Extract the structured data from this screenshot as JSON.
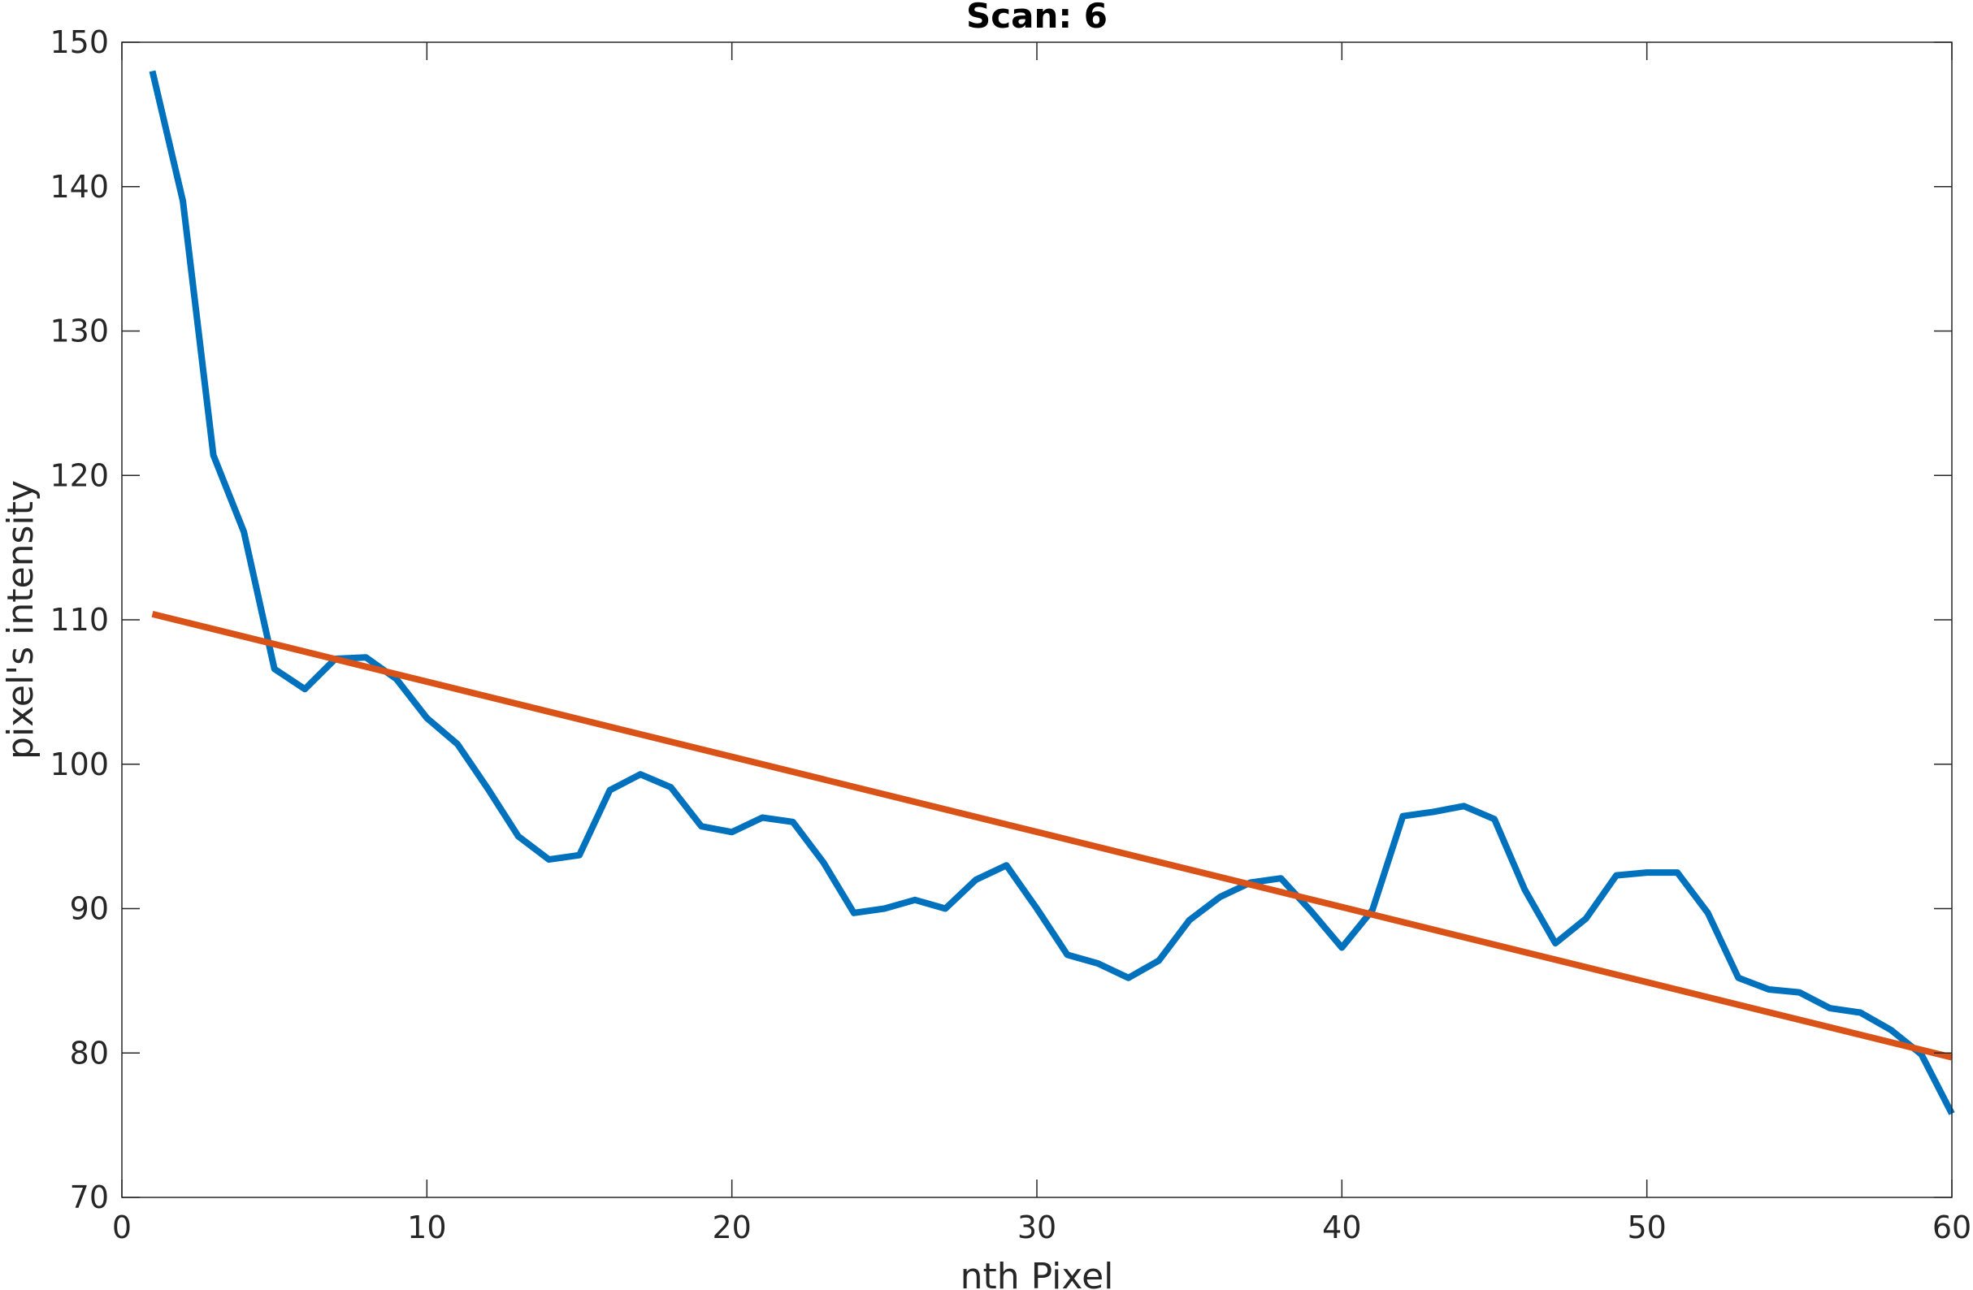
{
  "chart_data": {
    "type": "line",
    "title": "Scan: 6",
    "xlabel": "nth Pixel",
    "ylabel": "pixel's intensity",
    "xlim": [
      0,
      60
    ],
    "ylim": [
      70,
      150
    ],
    "xticks": [
      0,
      10,
      20,
      30,
      40,
      50,
      60
    ],
    "yticks": [
      70,
      80,
      90,
      100,
      110,
      120,
      130,
      140,
      150
    ],
    "grid": false,
    "series": [
      {
        "color": "#0072BD",
        "x": [
          1,
          2,
          3,
          4,
          5,
          6,
          7,
          8,
          9,
          10,
          11,
          12,
          13,
          14,
          15,
          16,
          17,
          18,
          19,
          20,
          21,
          22,
          23,
          24,
          25,
          26,
          27,
          28,
          29,
          30,
          31,
          32,
          33,
          34,
          35,
          36,
          37,
          38,
          39,
          40,
          41,
          42,
          43,
          44,
          45,
          46,
          47,
          48,
          49,
          50,
          51,
          52,
          53,
          54,
          55,
          56,
          57,
          58,
          59,
          60
        ],
        "y": [
          148,
          139,
          121.4,
          116.1,
          106.6,
          105.2,
          107.3,
          107.4,
          105.9,
          103.2,
          101.4,
          98.3,
          95.0,
          93.4,
          93.7,
          98.2,
          99.3,
          98.4,
          95.7,
          95.3,
          96.3,
          96.0,
          93.2,
          89.7,
          90.0,
          90.6,
          90.0,
          92.0,
          93.0,
          90.0,
          86.8,
          86.2,
          85.2,
          86.4,
          89.2,
          90.8,
          91.8,
          92.1,
          89.8,
          87.3,
          89.9,
          96.4,
          96.7,
          97.1,
          96.2,
          91.3,
          87.6,
          89.3,
          92.3,
          92.5,
          92.5,
          89.7,
          85.2,
          84.4,
          84.2,
          83.1,
          82.8,
          81.6,
          79.9,
          75.8
        ]
      },
      {
        "color": "#D95319",
        "x": [
          1,
          60
        ],
        "y": [
          110.4,
          79.7
        ]
      }
    ]
  }
}
